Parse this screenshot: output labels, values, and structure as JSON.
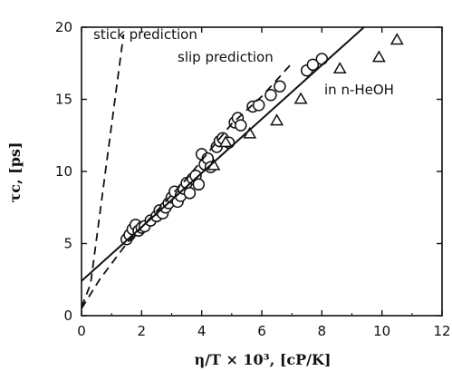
{
  "chart_data": {
    "type": "scatter",
    "xlabel": "η/T × 10³, [cP/K]",
    "ylabel": "τc, [ps]",
    "xlim": [
      0,
      12
    ],
    "ylim": [
      0,
      20
    ],
    "xticks": [
      0,
      2,
      4,
      6,
      8,
      10,
      12
    ],
    "yticks": [
      0,
      5,
      10,
      15,
      20
    ],
    "grid": false,
    "annotations": {
      "stick": "stick prediction",
      "slip": "slip prediction",
      "hexanol": "in n-HeOH"
    },
    "series": [
      {
        "marker": "circle",
        "points": [
          [
            1.5,
            5.3
          ],
          [
            1.6,
            5.6
          ],
          [
            1.7,
            6.0
          ],
          [
            1.8,
            6.3
          ],
          [
            1.9,
            5.9
          ],
          [
            2.0,
            6.1
          ],
          [
            2.1,
            6.2
          ],
          [
            2.3,
            6.6
          ],
          [
            2.5,
            6.9
          ],
          [
            2.6,
            7.3
          ],
          [
            2.7,
            7.1
          ],
          [
            2.8,
            7.5
          ],
          [
            2.9,
            7.8
          ],
          [
            3.0,
            8.2
          ],
          [
            3.1,
            8.6
          ],
          [
            3.2,
            7.9
          ],
          [
            3.3,
            8.3
          ],
          [
            3.4,
            8.8
          ],
          [
            3.5,
            9.2
          ],
          [
            3.6,
            8.5
          ],
          [
            3.7,
            9.5
          ],
          [
            3.8,
            9.7
          ],
          [
            3.9,
            9.1
          ],
          [
            4.0,
            11.2
          ],
          [
            4.1,
            10.5
          ],
          [
            4.2,
            10.9
          ],
          [
            4.3,
            10.3
          ],
          [
            4.5,
            11.7
          ],
          [
            4.6,
            12.1
          ],
          [
            4.7,
            12.3
          ],
          [
            4.9,
            12.0
          ],
          [
            5.1,
            13.4
          ],
          [
            5.2,
            13.7
          ],
          [
            5.3,
            13.2
          ],
          [
            5.7,
            14.5
          ],
          [
            5.9,
            14.6
          ],
          [
            6.3,
            15.3
          ],
          [
            6.6,
            15.9
          ],
          [
            7.5,
            17.0
          ],
          [
            7.7,
            17.4
          ],
          [
            8.0,
            17.8
          ]
        ]
      },
      {
        "marker": "triangle",
        "points": [
          [
            4.4,
            10.4
          ],
          [
            4.8,
            12.0
          ],
          [
            5.6,
            12.6
          ],
          [
            6.5,
            13.5
          ],
          [
            7.3,
            15.0
          ],
          [
            8.6,
            17.1
          ],
          [
            9.9,
            17.9
          ],
          [
            10.5,
            19.1
          ]
        ]
      },
      {
        "style": "solid",
        "line": [
          [
            0,
            2.4
          ],
          [
            9.4,
            20
          ]
        ]
      },
      {
        "style": "dashed",
        "line": [
          [
            0,
            0.6
          ],
          [
            0.3,
            2.2
          ],
          [
            1.4,
            19.5
          ]
        ]
      },
      {
        "style": "dashed",
        "line": [
          [
            0,
            0.5
          ],
          [
            0.6,
            2.5
          ],
          [
            1.5,
            5.0
          ],
          [
            3.5,
            9.5
          ],
          [
            5.0,
            13.3
          ],
          [
            6.0,
            15.2
          ],
          [
            7.0,
            17.5
          ]
        ]
      }
    ]
  }
}
